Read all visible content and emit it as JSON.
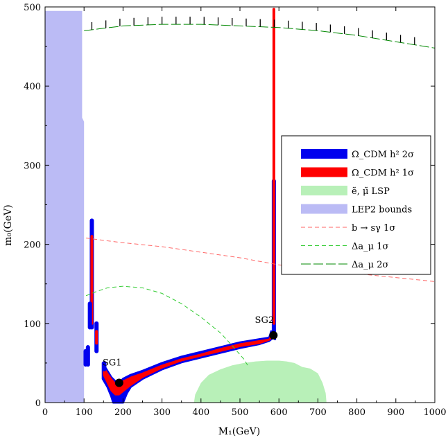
{
  "chart_data": {
    "type": "scatter",
    "title": "",
    "xlabel": "M₁(GeV)",
    "ylabel": "m₀(GeV)",
    "xlim": [
      0,
      1000
    ],
    "ylim": [
      0,
      500
    ],
    "xticks": [
      0,
      100,
      200,
      300,
      400,
      500,
      600,
      700,
      800,
      900,
      1000
    ],
    "yticks": [
      0,
      100,
      200,
      300,
      400,
      500
    ],
    "grid": false,
    "legend_position": "right",
    "legend": [
      {
        "label": "Ω_CDM h² 2σ",
        "style": "band",
        "color": "#0000ee"
      },
      {
        "label": "Ω_CDM h² 1σ",
        "style": "band",
        "color": "#ff0000"
      },
      {
        "label": "ẽ, μ̃ LSP",
        "style": "band",
        "color": "#b8f0b8"
      },
      {
        "label": "LEP2 bounds",
        "style": "band",
        "color": "#bbbbf5"
      },
      {
        "label": "b → sγ 1σ",
        "style": "dash",
        "color": "#ff6666"
      },
      {
        "label": "Δa_μ 1σ",
        "style": "dash",
        "color": "#33cc33"
      },
      {
        "label": "Δa_μ 2σ",
        "style": "longdash",
        "color": "#008800"
      }
    ],
    "regions": {
      "lep2_bounds": [
        [
          0,
          0
        ],
        [
          0,
          495
        ],
        [
          95,
          495
        ],
        [
          95,
          360
        ],
        [
          100,
          355
        ],
        [
          100,
          0
        ]
      ],
      "slepton_lsp": [
        [
          382,
          0
        ],
        [
          385,
          10
        ],
        [
          400,
          25
        ],
        [
          420,
          35
        ],
        [
          450,
          42
        ],
        [
          480,
          47
        ],
        [
          510,
          50
        ],
        [
          540,
          52
        ],
        [
          570,
          53
        ],
        [
          600,
          53
        ],
        [
          620,
          52
        ],
        [
          640,
          50
        ],
        [
          660,
          45
        ],
        [
          680,
          43
        ],
        [
          700,
          37
        ],
        [
          712,
          25
        ],
        [
          720,
          12
        ],
        [
          722,
          0
        ]
      ],
      "relic_2sigma_upper": [
        [
          148,
          50
        ],
        [
          150,
          48
        ],
        [
          160,
          40
        ],
        [
          170,
          32
        ],
        [
          180,
          27
        ],
        [
          190,
          24
        ],
        [
          200,
          30
        ],
        [
          220,
          35
        ],
        [
          250,
          40
        ],
        [
          300,
          50
        ],
        [
          350,
          58
        ],
        [
          400,
          64
        ],
        [
          450,
          70
        ],
        [
          500,
          76
        ],
        [
          550,
          80
        ],
        [
          575,
          82
        ],
        [
          578,
          86
        ],
        [
          580,
          90
        ]
      ],
      "relic_2sigma_lower": [
        [
          148,
          30
        ],
        [
          160,
          20
        ],
        [
          170,
          8
        ],
        [
          175,
          0
        ],
        [
          200,
          0
        ],
        [
          210,
          12
        ],
        [
          220,
          20
        ],
        [
          250,
          30
        ],
        [
          300,
          42
        ],
        [
          350,
          51
        ],
        [
          400,
          57
        ],
        [
          450,
          63
        ],
        [
          500,
          69
        ],
        [
          550,
          74
        ],
        [
          575,
          78
        ],
        [
          585,
          82
        ],
        [
          590,
          80
        ]
      ],
      "relic_1sigma_upper": [
        [
          150,
          45
        ],
        [
          160,
          37
        ],
        [
          170,
          30
        ],
        [
          180,
          24
        ],
        [
          190,
          22
        ],
        [
          200,
          27
        ],
        [
          220,
          32
        ],
        [
          250,
          37
        ],
        [
          300,
          47
        ],
        [
          350,
          55
        ],
        [
          400,
          61
        ],
        [
          450,
          68
        ],
        [
          500,
          74
        ],
        [
          550,
          78
        ],
        [
          575,
          80
        ],
        [
          580,
          84
        ]
      ],
      "relic_1sigma_lower": [
        [
          150,
          35
        ],
        [
          160,
          25
        ],
        [
          170,
          15
        ],
        [
          180,
          10
        ],
        [
          190,
          10
        ],
        [
          200,
          14
        ],
        [
          220,
          22
        ],
        [
          250,
          32
        ],
        [
          300,
          44
        ],
        [
          350,
          53
        ],
        [
          400,
          59
        ],
        [
          450,
          65
        ],
        [
          500,
          71
        ],
        [
          550,
          75
        ],
        [
          575,
          79
        ],
        [
          585,
          84
        ]
      ]
    },
    "relic_strips": [
      {
        "x": 587,
        "y0": 85,
        "y1": 280,
        "band": "2sigma"
      },
      {
        "x": 587,
        "y0": 100,
        "y1": 497,
        "band": "1sigma"
      },
      {
        "x": 120,
        "y0": 95,
        "y1": 230,
        "band": "2sigma"
      },
      {
        "x": 120,
        "y0": 100,
        "y1": 210,
        "band": "1sigma"
      },
      {
        "x": 115,
        "y0": 95,
        "y1": 125,
        "band": "2sigma"
      },
      {
        "x": 132,
        "y0": 65,
        "y1": 100,
        "band": "2sigma"
      },
      {
        "x": 132,
        "y0": 75,
        "y1": 90,
        "band": "1sigma"
      },
      {
        "x": 110,
        "y0": 48,
        "y1": 70,
        "band": "2sigma"
      },
      {
        "x": 104,
        "y0": 48,
        "y1": 65,
        "band": "2sigma"
      },
      {
        "x": 152,
        "y0": 42,
        "y1": 50,
        "band": "2sigma"
      }
    ],
    "lines": [
      {
        "name": "bsgamma_1sigma",
        "style": "dash",
        "color": "#ff6666",
        "points": [
          [
            105,
            208
          ],
          [
            150,
            205
          ],
          [
            200,
            202
          ],
          [
            300,
            197
          ],
          [
            400,
            190
          ],
          [
            500,
            183
          ],
          [
            600,
            174
          ],
          [
            700,
            168
          ],
          [
            800,
            163
          ],
          [
            900,
            158
          ],
          [
            1000,
            153
          ]
        ]
      },
      {
        "name": "amu_1sigma",
        "style": "dash",
        "color": "#33cc33",
        "points": [
          [
            105,
            135
          ],
          [
            130,
            140
          ],
          [
            160,
            145
          ],
          [
            200,
            147
          ],
          [
            250,
            145
          ],
          [
            300,
            138
          ],
          [
            350,
            125
          ],
          [
            400,
            108
          ],
          [
            450,
            88
          ],
          [
            480,
            72
          ],
          [
            510,
            55
          ],
          [
            520,
            47
          ]
        ]
      },
      {
        "name": "amu_2sigma",
        "style": "longdash",
        "color": "#008800",
        "hatched": true,
        "points": [
          [
            100,
            470
          ],
          [
            150,
            473
          ],
          [
            200,
            476
          ],
          [
            300,
            478
          ],
          [
            400,
            478
          ],
          [
            500,
            476
          ],
          [
            600,
            474
          ],
          [
            700,
            470
          ],
          [
            800,
            464
          ],
          [
            900,
            456
          ],
          [
            1000,
            448
          ]
        ]
      }
    ],
    "annotations": [
      {
        "label": "SG1",
        "x": 190,
        "y": 25
      },
      {
        "label": "SG2",
        "x": 586,
        "y": 85
      }
    ]
  }
}
